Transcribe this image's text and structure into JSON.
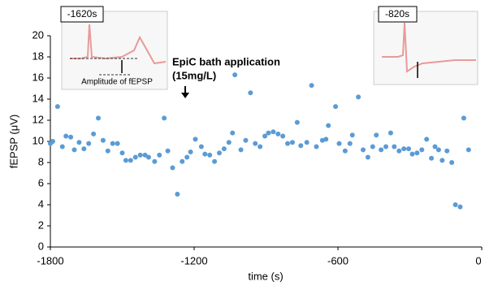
{
  "chart_data": {
    "type": "scatter",
    "x_label": "time (s)",
    "y_label": "fEPSP (μV)",
    "xlim": [
      -1800,
      0
    ],
    "xticks": [
      -1800,
      -1200,
      -600,
      0
    ],
    "ylim": [
      0,
      20
    ],
    "yticks": [
      0,
      2,
      4,
      6,
      8,
      10,
      12,
      14,
      16,
      18,
      20
    ],
    "grid": false,
    "color": "#5b9bd5",
    "annotation": [
      "EpiC bath application",
      "(15mg/L)"
    ],
    "insets": [
      {
        "label": "-1620s",
        "caption": "Amplitude of fEPSP"
      },
      {
        "label": "-820s"
      }
    ],
    "x": [
      -1800,
      -1790,
      -1770,
      -1750,
      -1735,
      -1715,
      -1700,
      -1680,
      -1660,
      -1640,
      -1620,
      -1600,
      -1580,
      -1560,
      -1540,
      -1520,
      -1500,
      -1485,
      -1465,
      -1445,
      -1425,
      -1405,
      -1390,
      -1365,
      -1345,
      -1325,
      -1310,
      -1290,
      -1270,
      -1250,
      -1230,
      -1215,
      -1195,
      -1170,
      -1155,
      -1135,
      -1115,
      -1095,
      -1075,
      -1055,
      -1040,
      -1030,
      -1005,
      -985,
      -965,
      -945,
      -925,
      -905,
      -890,
      -870,
      -850,
      -830,
      -810,
      -790,
      -770,
      -755,
      -730,
      -710,
      -690,
      -665,
      -650,
      -640,
      -610,
      -595,
      -570,
      -550,
      -540,
      -515,
      -495,
      -475,
      -455,
      -440,
      -420,
      -400,
      -380,
      -365,
      -345,
      -325,
      -305,
      -290,
      -270,
      -250,
      -230,
      -210,
      -195,
      -180,
      -165,
      -145,
      -125,
      -110,
      -90,
      -75,
      -55
    ],
    "values": [
      9.8,
      10.0,
      13.3,
      9.5,
      10.5,
      10.4,
      9.2,
      9.9,
      9.3,
      9.8,
      10.7,
      12.2,
      10.1,
      9.1,
      9.8,
      9.8,
      8.9,
      8.2,
      8.2,
      8.5,
      8.7,
      8.7,
      8.5,
      8.1,
      8.7,
      12.2,
      9.1,
      7.5,
      5.0,
      8.1,
      8.5,
      9.0,
      10.2,
      9.5,
      8.8,
      8.7,
      8.1,
      8.9,
      9.3,
      9.9,
      10.8,
      16.3,
      9.2,
      10.1,
      14.6,
      9.8,
      9.5,
      10.5,
      10.8,
      10.9,
      10.7,
      10.5,
      9.8,
      9.9,
      11.8,
      9.6,
      9.9,
      15.3,
      9.5,
      10.1,
      10.2,
      11.5,
      13.3,
      9.8,
      9.1,
      9.8,
      10.6,
      14.2,
      9.2,
      8.5,
      9.5,
      10.6,
      9.2,
      9.5,
      10.8,
      9.5,
      9.1,
      9.3,
      9.3,
      8.8,
      8.9,
      9.2,
      10.2,
      8.4,
      9.5,
      9.2,
      8.2,
      9.1,
      8.0,
      4.0,
      3.8,
      12.2,
      9.2
    ]
  }
}
